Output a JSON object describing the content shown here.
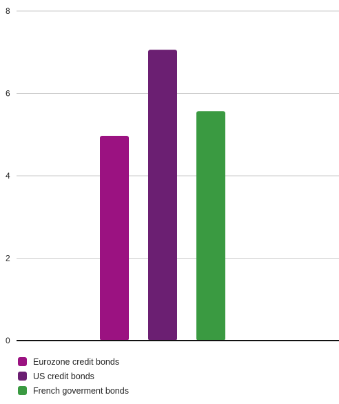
{
  "chart_data": {
    "type": "bar",
    "categories": [
      "Eurozone credit bonds",
      "US credit bonds",
      "French goverment bonds"
    ],
    "values": [
      4.97,
      7.06,
      5.57
    ],
    "colors": [
      "#9b1281",
      "#6b1f72",
      "#3a9a41"
    ],
    "ylim": [
      0,
      8
    ],
    "yticks": [
      "0",
      "2",
      "4",
      "6",
      "8"
    ],
    "grid": true,
    "legend_position": "bottom-left",
    "title": "",
    "xlabel": "",
    "ylabel": ""
  }
}
